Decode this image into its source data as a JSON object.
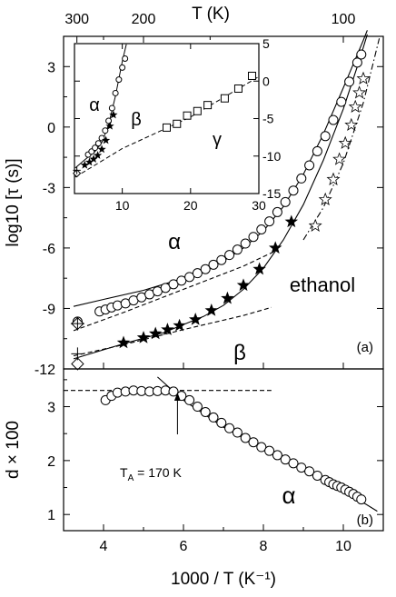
{
  "chart_data": [
    {
      "panel": "top",
      "type": "scatter",
      "xlabel_top": "T (K)",
      "top_ticks_T": [
        300,
        200,
        100
      ],
      "ylabel": "log10 [τ (s)]",
      "xlim": [
        3.0,
        11.0
      ],
      "ylim": [
        -12,
        4.5
      ],
      "yticks": [
        3,
        0,
        -3,
        -6,
        -9,
        -12
      ],
      "panel_label": "(a)",
      "material_label": "ethanol",
      "process_labels": [
        "α",
        "β"
      ],
      "series": [
        {
          "name": "α",
          "marker": "open-circle",
          "points": [
            [
              3.35,
              -9.65
            ],
            [
              3.9,
              -9.15
            ],
            [
              4.05,
              -9.05
            ],
            [
              4.2,
              -8.95
            ],
            [
              4.35,
              -8.85
            ],
            [
              4.55,
              -8.75
            ],
            [
              4.75,
              -8.6
            ],
            [
              4.95,
              -8.45
            ],
            [
              5.15,
              -8.3
            ],
            [
              5.35,
              -8.15
            ],
            [
              5.55,
              -7.98
            ],
            [
              5.75,
              -7.8
            ],
            [
              5.95,
              -7.62
            ],
            [
              6.15,
              -7.44
            ],
            [
              6.35,
              -7.25
            ],
            [
              6.55,
              -7.05
            ],
            [
              6.75,
              -6.83
            ],
            [
              6.95,
              -6.6
            ],
            [
              7.15,
              -6.35
            ],
            [
              7.35,
              -6.08
            ],
            [
              7.55,
              -5.78
            ],
            [
              7.75,
              -5.45
            ],
            [
              7.95,
              -5.08
            ],
            [
              8.15,
              -4.68
            ],
            [
              8.35,
              -4.22
            ],
            [
              8.55,
              -3.72
            ],
            [
              8.75,
              -3.15
            ],
            [
              8.95,
              -2.55
            ],
            [
              9.15,
              -1.9
            ],
            [
              9.35,
              -1.2
            ],
            [
              9.55,
              -0.45
            ],
            [
              9.75,
              0.35
            ],
            [
              9.95,
              1.25
            ],
            [
              10.15,
              2.25
            ],
            [
              10.35,
              3.2
            ],
            [
              10.45,
              3.6
            ]
          ]
        },
        {
          "name": "β",
          "marker": "filled-star",
          "points": [
            [
              4.5,
              -10.7
            ],
            [
              5.0,
              -10.45
            ],
            [
              5.3,
              -10.25
            ],
            [
              5.6,
              -10.05
            ],
            [
              5.9,
              -9.85
            ],
            [
              6.3,
              -9.55
            ],
            [
              6.7,
              -9.1
            ],
            [
              7.1,
              -8.5
            ],
            [
              7.5,
              -7.85
            ],
            [
              7.9,
              -7.05
            ],
            [
              8.3,
              -6.0
            ],
            [
              8.7,
              -4.7
            ]
          ]
        },
        {
          "name": "open-star",
          "marker": "open-star",
          "points": [
            [
              9.3,
              -4.9
            ],
            [
              9.55,
              -3.6
            ],
            [
              9.75,
              -2.6
            ],
            [
              9.9,
              -1.6
            ],
            [
              10.05,
              -0.8
            ],
            [
              10.2,
              0.1
            ],
            [
              10.3,
              1.0
            ],
            [
              10.4,
              1.7
            ],
            [
              10.5,
              2.4
            ]
          ]
        },
        {
          "name": "crossed-diamond",
          "marker": "crossed-diamond",
          "points": [
            [
              3.35,
              -9.75
            ]
          ]
        },
        {
          "name": "diamond",
          "marker": "open-diamond",
          "points": [
            [
              3.35,
              -11.75
            ]
          ]
        },
        {
          "name": "plus",
          "marker": "plus",
          "points": [
            [
              3.35,
              -11.25
            ]
          ]
        }
      ],
      "curves": [
        {
          "style": "solid",
          "points": [
            [
              3.25,
              -8.9
            ],
            [
              4.0,
              -8.55
            ],
            [
              5.0,
              -8.1
            ],
            [
              6.0,
              -7.5
            ],
            [
              7.0,
              -6.65
            ],
            [
              7.5,
              -6.0
            ],
            [
              8.0,
              -5.15
            ],
            [
              8.5,
              -3.95
            ],
            [
              9.0,
              -2.35
            ],
            [
              9.5,
              -0.35
            ],
            [
              10.0,
              1.95
            ],
            [
              10.5,
              4.3
            ],
            [
              10.6,
              4.8
            ]
          ]
        },
        {
          "style": "dashed",
          "points": [
            [
              3.25,
              -10.1
            ],
            [
              4.5,
              -9.2
            ],
            [
              6.0,
              -8.05
            ],
            [
              7.5,
              -6.9
            ],
            [
              8.3,
              -6.15
            ]
          ]
        },
        {
          "style": "solid",
          "points": [
            [
              3.25,
              -11.5
            ],
            [
              4.5,
              -10.75
            ],
            [
              5.5,
              -10.2
            ],
            [
              6.5,
              -9.4
            ],
            [
              7.0,
              -8.85
            ],
            [
              7.5,
              -8.05
            ],
            [
              8.0,
              -7.0
            ],
            [
              8.5,
              -5.6
            ],
            [
              9.0,
              -3.85
            ],
            [
              9.5,
              -1.65
            ],
            [
              10.0,
              0.9
            ],
            [
              10.4,
              3.3
            ],
            [
              10.6,
              4.6
            ]
          ]
        },
        {
          "style": "dashed",
          "points": [
            [
              3.25,
              -11.35
            ],
            [
              4.5,
              -10.8
            ],
            [
              6.0,
              -10.05
            ],
            [
              7.5,
              -9.35
            ],
            [
              8.2,
              -8.95
            ]
          ]
        },
        {
          "style": "dash-dot",
          "points": [
            [
              9.0,
              -5.6
            ],
            [
              9.5,
              -4.0
            ],
            [
              10.0,
              -1.8
            ],
            [
              10.5,
              1.2
            ],
            [
              10.9,
              4.4
            ]
          ]
        }
      ]
    },
    {
      "panel": "inset",
      "type": "scatter",
      "xlim": [
        3.0,
        30.0
      ],
      "xticks": [
        10,
        20,
        30
      ],
      "ylim": [
        -15,
        5
      ],
      "yticks_right": [
        5,
        0,
        -5,
        -10,
        -15
      ],
      "process_labels": [
        "α",
        "β",
        "γ"
      ],
      "series": [
        {
          "name": "α",
          "marker": "open-circle",
          "points": [
            [
              5.0,
              -9.8
            ],
            [
              5.5,
              -9.4
            ],
            [
              6.0,
              -8.9
            ],
            [
              6.5,
              -8.3
            ],
            [
              7.0,
              -7.6
            ],
            [
              7.5,
              -6.6
            ],
            [
              8.0,
              -5.3
            ],
            [
              8.5,
              -3.6
            ],
            [
              9.0,
              -1.6
            ],
            [
              9.5,
              0.2
            ],
            [
              10.0,
              1.8
            ],
            [
              10.4,
              3.0
            ]
          ]
        },
        {
          "name": "β",
          "marker": "filled-star",
          "points": [
            [
              4.5,
              -11.2
            ],
            [
              5.2,
              -10.8
            ],
            [
              5.8,
              -10.4
            ],
            [
              6.4,
              -9.9
            ],
            [
              7.0,
              -9.1
            ],
            [
              7.6,
              -7.9
            ],
            [
              8.2,
              -6.0
            ],
            [
              8.7,
              -4.5
            ]
          ]
        },
        {
          "name": "γ",
          "marker": "open-square",
          "points": [
            [
              16.5,
              -6.2
            ],
            [
              18.0,
              -5.7
            ],
            [
              19.5,
              -4.6
            ],
            [
              21.0,
              -4.0
            ],
            [
              22.5,
              -3.2
            ],
            [
              25.0,
              -2.3
            ],
            [
              27.0,
              -1.0
            ],
            [
              29.0,
              0.7
            ]
          ]
        },
        {
          "name": "diamond",
          "marker": "open-diamond",
          "points": [
            [
              3.35,
              -12.3
            ]
          ]
        },
        {
          "name": "plus",
          "marker": "plus",
          "points": [
            [
              3.35,
              -11.9
            ]
          ]
        }
      ],
      "curves": [
        {
          "style": "solid",
          "points": [
            [
              3.1,
              -11.6
            ],
            [
              4.5,
              -10.5
            ],
            [
              6.0,
              -9.4
            ],
            [
              7.0,
              -8.2
            ],
            [
              8.0,
              -5.8
            ],
            [
              9.0,
              -2.0
            ],
            [
              10.0,
              2.6
            ],
            [
              10.6,
              4.9
            ]
          ]
        },
        {
          "style": "dashed",
          "points": [
            [
              3.1,
              -12.8
            ],
            [
              10,
              -9.0
            ],
            [
              20,
              -4.8
            ],
            [
              30,
              0.6
            ]
          ]
        }
      ]
    },
    {
      "panel": "bottom",
      "type": "scatter",
      "xlabel": "1000 / T (K⁻¹)",
      "ylabel": "d × 100",
      "xlim": [
        3.0,
        11.0
      ],
      "xticks": [
        4,
        6,
        8,
        10
      ],
      "ylim": [
        0.7,
        3.7
      ],
      "yticks": [
        1,
        2,
        3
      ],
      "panel_label": "(b)",
      "process_label": "α",
      "annotation": "T",
      "annotation_sub": "A",
      "annotation_rest": " = 170 K",
      "annotation_x": 5.85,
      "reference_level": 3.3,
      "series": [
        {
          "name": "α",
          "marker": "open-circle",
          "points": [
            [
              4.05,
              3.12
            ],
            [
              4.2,
              3.2
            ],
            [
              4.35,
              3.26
            ],
            [
              4.55,
              3.28
            ],
            [
              4.75,
              3.3
            ],
            [
              4.95,
              3.29
            ],
            [
              5.15,
              3.28
            ],
            [
              5.35,
              3.29
            ],
            [
              5.55,
              3.3
            ],
            [
              5.75,
              3.28
            ],
            [
              5.95,
              3.2
            ],
            [
              6.15,
              3.12
            ],
            [
              6.35,
              3.0
            ],
            [
              6.55,
              2.9
            ],
            [
              6.75,
              2.8
            ],
            [
              6.95,
              2.7
            ],
            [
              7.15,
              2.6
            ],
            [
              7.35,
              2.52
            ],
            [
              7.55,
              2.42
            ],
            [
              7.75,
              2.34
            ],
            [
              7.95,
              2.25
            ],
            [
              8.15,
              2.18
            ],
            [
              8.35,
              2.1
            ],
            [
              8.55,
              2.02
            ],
            [
              8.75,
              1.95
            ],
            [
              8.95,
              1.87
            ],
            [
              9.15,
              1.8
            ],
            [
              9.35,
              1.72
            ],
            [
              9.55,
              1.64
            ],
            [
              9.65,
              1.6
            ],
            [
              9.75,
              1.56
            ],
            [
              9.85,
              1.53
            ],
            [
              9.95,
              1.5
            ],
            [
              10.05,
              1.46
            ],
            [
              10.15,
              1.42
            ],
            [
              10.25,
              1.38
            ],
            [
              10.35,
              1.33
            ],
            [
              10.45,
              1.28
            ]
          ]
        }
      ],
      "curves": [
        {
          "style": "solid",
          "points": [
            [
              5.35,
              3.55
            ],
            [
              6.0,
              3.12
            ],
            [
              7.0,
              2.62
            ],
            [
              8.0,
              2.22
            ],
            [
              9.0,
              1.85
            ],
            [
              10.0,
              1.45
            ],
            [
              10.85,
              1.06
            ]
          ]
        },
        {
          "style": "dashed",
          "points": [
            [
              3.0,
              3.3
            ],
            [
              8.2,
              3.3
            ]
          ]
        }
      ]
    }
  ]
}
